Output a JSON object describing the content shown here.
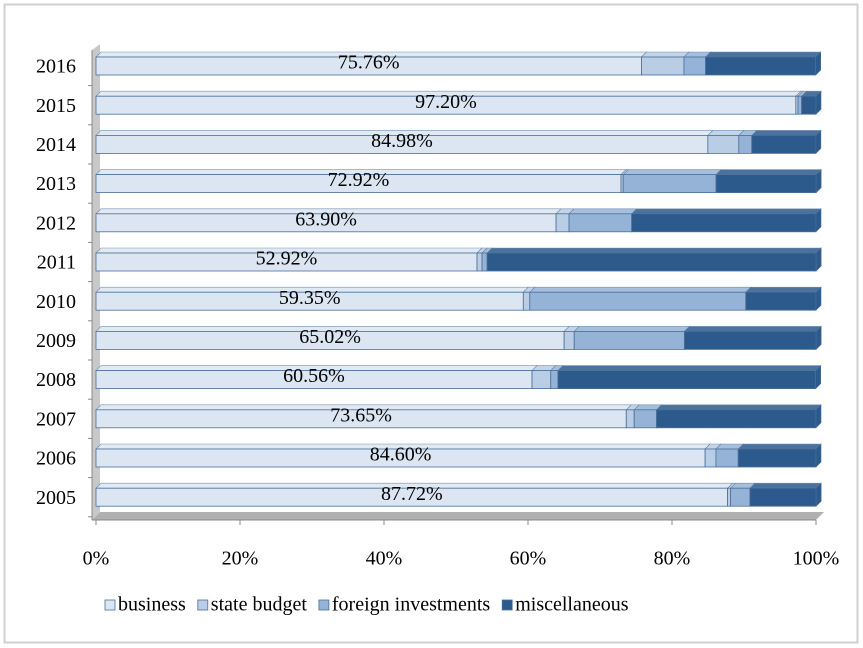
{
  "chart_data": {
    "type": "stacked-bar-horizontal",
    "categories": [
      "2016",
      "2015",
      "2014",
      "2013",
      "2012",
      "2011",
      "2010",
      "2009",
      "2008",
      "2007",
      "2006",
      "2005"
    ],
    "series": [
      {
        "name": "business",
        "color": "#dce6f2",
        "values": [
          75.76,
          97.2,
          84.98,
          72.92,
          63.9,
          52.92,
          59.35,
          65.02,
          60.56,
          73.65,
          84.6,
          87.72
        ],
        "value_labels": [
          "75.76%",
          "97.20%",
          "84.98%",
          "72.92%",
          "63.90%",
          "52.92%",
          "59.35%",
          "65.02%",
          "60.56%",
          "73.65%",
          "84.60%",
          "87.72%"
        ]
      },
      {
        "name": "state budget",
        "color": "#b9cde5",
        "values": [
          5.9,
          0.3,
          4.3,
          0.3,
          1.8,
          0.7,
          0.9,
          1.4,
          2.6,
          1.1,
          1.5,
          0.4
        ]
      },
      {
        "name": "foreign investments",
        "color": "#95b3d7",
        "values": [
          3.0,
          0.5,
          1.8,
          12.9,
          8.7,
          0.7,
          30.0,
          15.3,
          1.0,
          3.1,
          3.1,
          2.7
        ]
      },
      {
        "name": "miscellaneous",
        "color": "#2c5a8c",
        "values": [
          15.3,
          2.0,
          8.9,
          13.9,
          25.6,
          45.7,
          9.75,
          18.3,
          35.8,
          22.15,
          10.8,
          9.2
        ]
      }
    ],
    "xlim": [
      0,
      100
    ],
    "xticks": [
      {
        "value": 0,
        "label": "0%"
      },
      {
        "value": 20,
        "label": "20%"
      },
      {
        "value": 40,
        "label": "40%"
      },
      {
        "value": 60,
        "label": "60%"
      },
      {
        "value": 80,
        "label": "80%"
      },
      {
        "value": 100,
        "label": "100%"
      }
    ]
  }
}
